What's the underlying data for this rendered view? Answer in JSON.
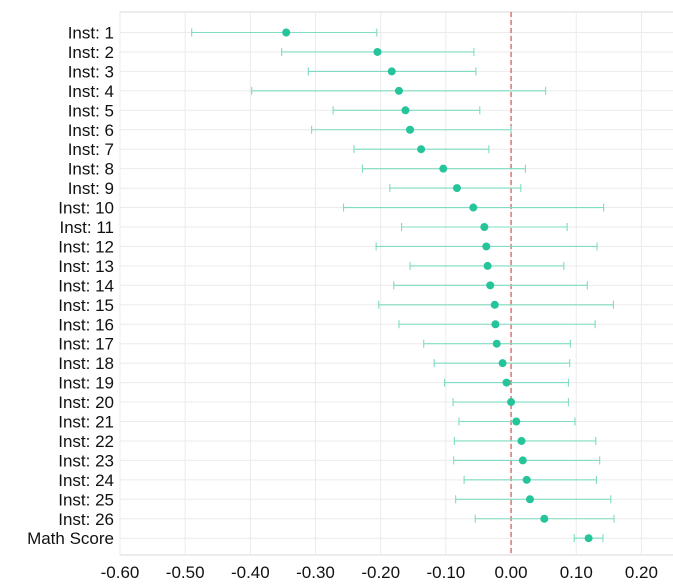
{
  "chart_data": {
    "type": "scatter",
    "title": "",
    "xlabel": "",
    "ylabel": "",
    "xlim": [
      -0.6,
      0.25
    ],
    "x_ticks": [
      "-0.60",
      "-0.50",
      "-0.40",
      "-0.30",
      "-0.20",
      "-0.10",
      "0.00",
      "0.10",
      "0.20"
    ],
    "reference_line_x": 0.0,
    "colors": {
      "point": "#26c49a",
      "interval": "#7fdcc2",
      "reference": "#d9534f",
      "grid": "#ebebeb"
    },
    "grid": true,
    "categories": [
      "Inst: 1",
      "Inst: 2",
      "Inst: 3",
      "Inst: 4",
      "Inst: 5",
      "Inst: 6",
      "Inst: 7",
      "Inst: 8",
      "Inst: 9",
      "Inst: 10",
      "Inst: 11",
      "Inst: 12",
      "Inst: 13",
      "Inst: 14",
      "Inst: 15",
      "Inst: 16",
      "Inst: 17",
      "Inst: 18",
      "Inst: 19",
      "Inst: 20",
      "Inst: 21",
      "Inst: 22",
      "Inst: 23",
      "Inst: 24",
      "Inst: 25",
      "Inst: 26",
      "Math Score"
    ],
    "estimates": [
      -0.345,
      -0.205,
      -0.183,
      -0.172,
      -0.162,
      -0.155,
      -0.138,
      -0.104,
      -0.083,
      -0.058,
      -0.041,
      -0.038,
      -0.036,
      -0.032,
      -0.025,
      -0.024,
      -0.022,
      -0.013,
      -0.007,
      0.0,
      0.008,
      0.016,
      0.018,
      0.024,
      0.029,
      0.051,
      0.119
    ],
    "lower": [
      -0.49,
      -0.352,
      -0.311,
      -0.398,
      -0.273,
      -0.306,
      -0.241,
      -0.228,
      -0.186,
      -0.257,
      -0.168,
      -0.207,
      -0.155,
      -0.18,
      -0.203,
      -0.172,
      -0.134,
      -0.118,
      -0.102,
      -0.089,
      -0.08,
      -0.087,
      -0.088,
      -0.072,
      -0.085,
      -0.055,
      0.097
    ],
    "upper": [
      -0.206,
      -0.057,
      -0.054,
      0.053,
      -0.048,
      0.0,
      -0.034,
      0.022,
      0.015,
      0.142,
      0.086,
      0.132,
      0.081,
      0.117,
      0.157,
      0.129,
      0.091,
      0.09,
      0.088,
      0.088,
      0.098,
      0.13,
      0.136,
      0.131,
      0.153,
      0.158,
      0.141
    ]
  }
}
